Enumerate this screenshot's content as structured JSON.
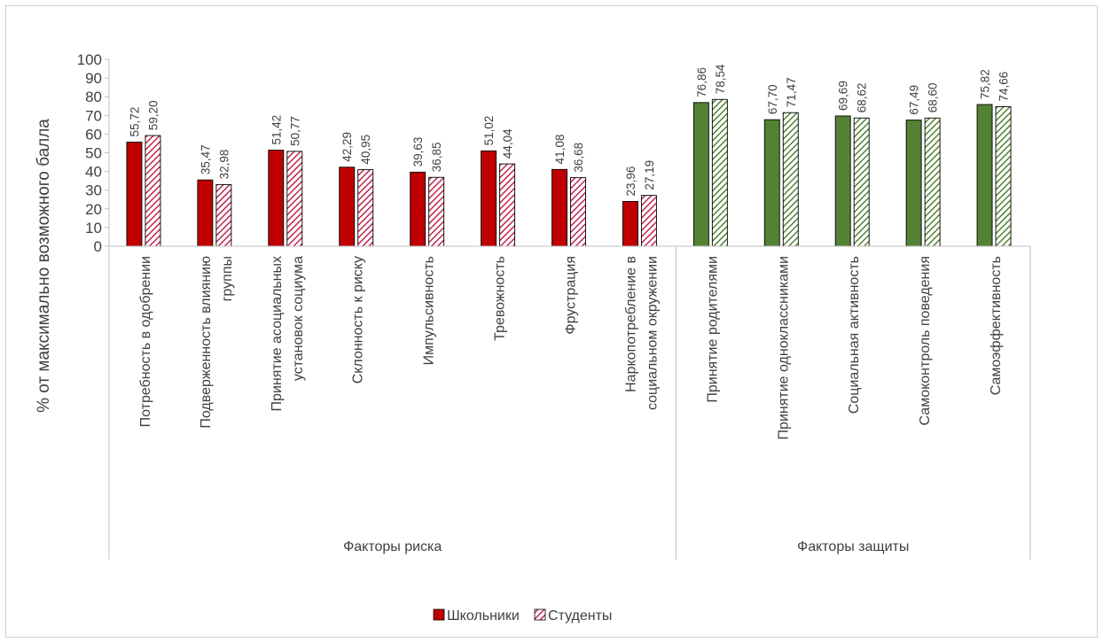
{
  "chart_data": {
    "type": "bar",
    "ylabel": "% от максимально возможного балла",
    "ylim": [
      0,
      100
    ],
    "ytick_step": 10,
    "yticks": [
      "0",
      "10",
      "20",
      "30",
      "40",
      "50",
      "60",
      "70",
      "80",
      "90",
      "100"
    ],
    "groups": [
      {
        "label": "Факторы риска",
        "categories": [
          "Потребность в одобрении",
          "Подверженность влиянию группы",
          "Принятие асоциальных установок социума",
          "Склонность к риску",
          "Импульсивность",
          "Тревожность",
          "Фрустрация",
          "Наркопотребление в социальном окружении"
        ]
      },
      {
        "label": "Факторы защиты",
        "categories": [
          "Принятие родителями",
          "Принятие одноклассниками",
          "Социальная активность",
          "Самоконтроль поведения",
          "Самоэффективность"
        ]
      }
    ],
    "category_lines": [
      [
        "Потребность в одобрении"
      ],
      [
        "Подверженность влиянию",
        "группы"
      ],
      [
        "Принятие асоциальных",
        "установок социума"
      ],
      [
        "Склонность к риску"
      ],
      [
        "Импульсивность"
      ],
      [
        "Тревожность"
      ],
      [
        "Фрустрация"
      ],
      [
        "Наркопотребление в",
        "социальном окружении"
      ],
      [
        "Принятие родителями"
      ],
      [
        "Принятие одноклассниками"
      ],
      [
        "Социальная активность"
      ],
      [
        "Самоконтроль поведения"
      ],
      [
        "Самоэффективность"
      ]
    ],
    "series": [
      {
        "name": "Школьники",
        "values": [
          55.72,
          35.47,
          51.42,
          42.29,
          39.63,
          51.02,
          41.08,
          23.96,
          76.86,
          67.7,
          69.69,
          67.49,
          75.82
        ],
        "labels": [
          "55,72",
          "35,47",
          "51,42",
          "42,29",
          "39,63",
          "51,02",
          "41,08",
          "23,96",
          "76,86",
          "67,70",
          "69,69",
          "67,49",
          "75,82"
        ]
      },
      {
        "name": "Студенты",
        "values": [
          59.2,
          32.98,
          50.77,
          40.95,
          36.85,
          44.04,
          36.68,
          27.19,
          78.54,
          71.47,
          68.62,
          68.6,
          74.66
        ],
        "labels": [
          "59,20",
          "32,98",
          "50,77",
          "40,95",
          "36,85",
          "44,04",
          "36,68",
          "27,19",
          "78,54",
          "71,47",
          "68,62",
          "68,60",
          "74,66"
        ]
      }
    ],
    "colors": {
      "risk_solid": "#C00000",
      "risk_hatch": "#C0264E",
      "protect_solid": "#548235",
      "protect_hatch": "#548235",
      "outline": "#000000"
    },
    "legend_position": "bottom",
    "grid": false
  }
}
